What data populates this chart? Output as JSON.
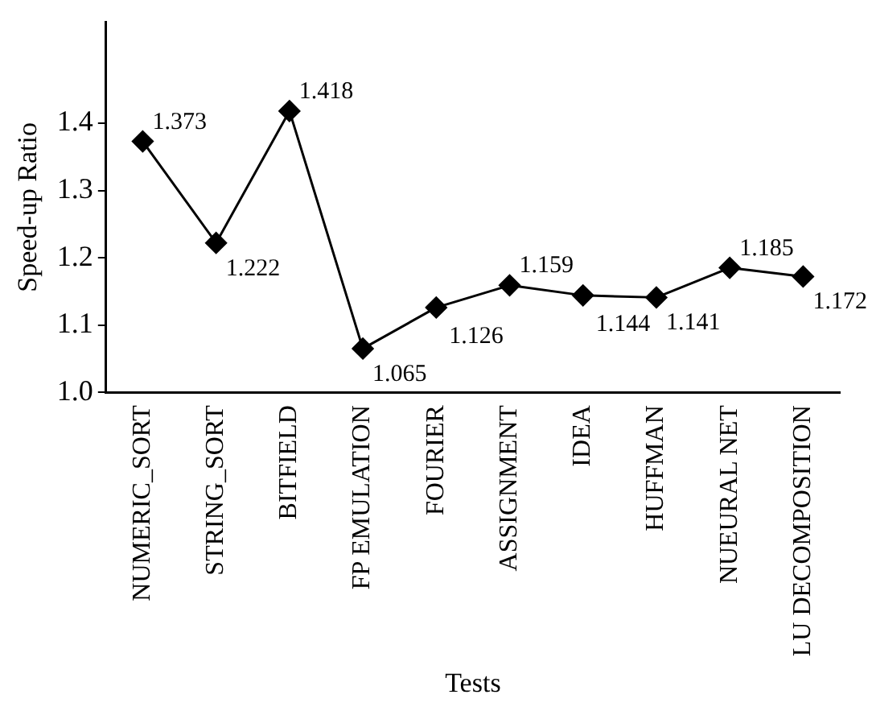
{
  "chart_data": {
    "type": "line",
    "xlabel": "Tests",
    "ylabel": "Speed-up Ratio",
    "categories": [
      "NUMERIC_SORT",
      "STRING_SORT",
      "BITFIELD",
      "FP EMULATION",
      "FOURIER",
      "ASSIGNMENT",
      "IDEA",
      "HUFFMAN",
      "NUEURAL NET",
      "LU DECOMPOSITION"
    ],
    "series": [
      {
        "color": "#000000",
        "values": [
          1.373,
          1.222,
          1.418,
          1.065,
          1.126,
          1.159,
          1.144,
          1.141,
          1.185,
          1.172
        ]
      }
    ],
    "ylim": [
      1.0,
      1.55
    ],
    "yticks": [
      {
        "value": 1.0,
        "label": "1.0"
      },
      {
        "value": 1.1,
        "label": "1.1"
      },
      {
        "value": 1.2,
        "label": "1.2"
      },
      {
        "value": 1.3,
        "label": "1.3"
      },
      {
        "value": 1.4,
        "label": "1.4"
      }
    ],
    "grid": false,
    "legend": false,
    "marker": "diamond",
    "line_style": "solid",
    "data_labels": true
  }
}
